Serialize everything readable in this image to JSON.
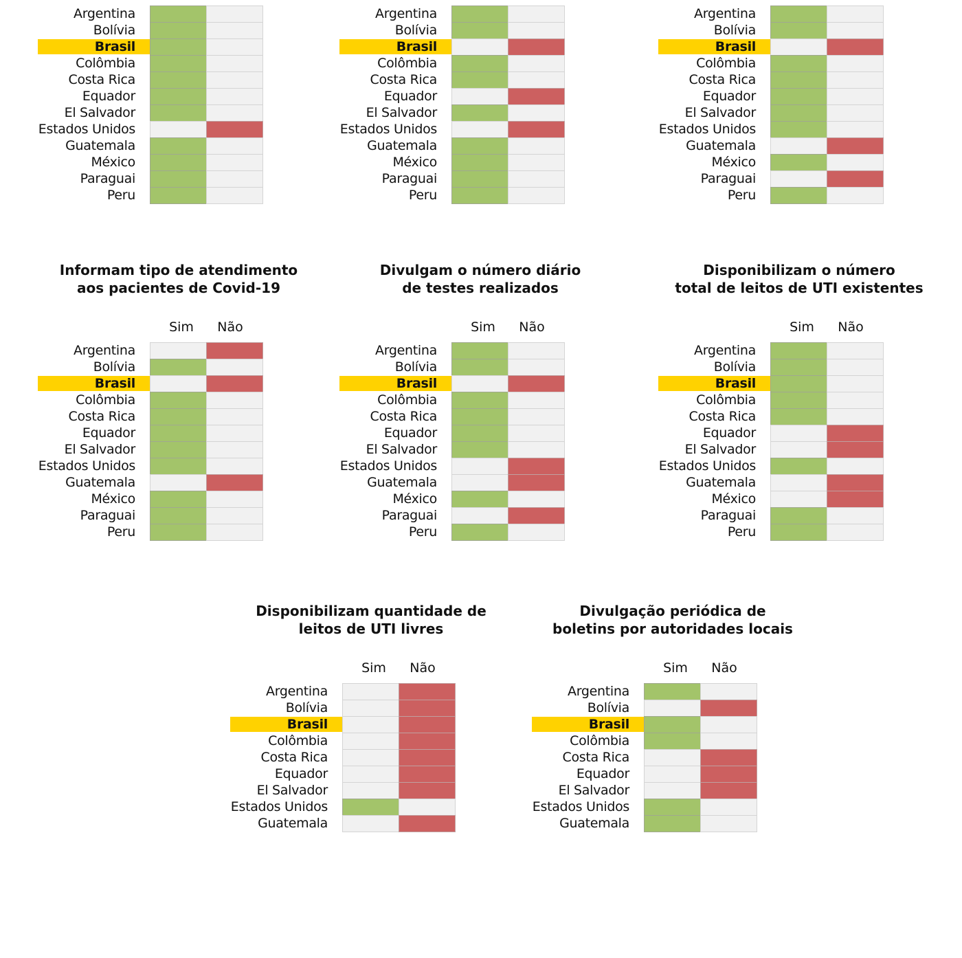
{
  "colors": {
    "sim": "#a3c46a",
    "nao": "#cc6060",
    "empty": "#f1f1f1",
    "highlight": "#ffd200"
  },
  "headers": {
    "sim": "Sim",
    "nao": "Não"
  },
  "highlight_country": "Brasil",
  "chart_data": [
    {
      "type": "table",
      "title": "",
      "countries": [
        "Argentina",
        "Bolívia",
        "Brasil",
        "Colômbia",
        "Costa Rica",
        "Equador",
        "El Salvador",
        "Estados Unidos",
        "Guatemala",
        "México",
        "Paraguai",
        "Peru"
      ],
      "values": [
        "Sim",
        "Sim",
        "Sim",
        "Sim",
        "Sim",
        "Sim",
        "Sim",
        "Não",
        "Sim",
        "Sim",
        "Sim",
        "Sim"
      ]
    },
    {
      "type": "table",
      "title": "",
      "countries": [
        "Argentina",
        "Bolívia",
        "Brasil",
        "Colômbia",
        "Costa Rica",
        "Equador",
        "El Salvador",
        "Estados Unidos",
        "Guatemala",
        "México",
        "Paraguai",
        "Peru"
      ],
      "values": [
        "Sim",
        "Sim",
        "Não",
        "Sim",
        "Sim",
        "Não",
        "Sim",
        "Não",
        "Sim",
        "Sim",
        "Sim",
        "Sim"
      ]
    },
    {
      "type": "table",
      "title": "",
      "countries": [
        "Argentina",
        "Bolívia",
        "Brasil",
        "Colômbia",
        "Costa Rica",
        "Equador",
        "El Salvador",
        "Estados Unidos",
        "Guatemala",
        "México",
        "Paraguai",
        "Peru"
      ],
      "values": [
        "Sim",
        "Sim",
        "Não",
        "Sim",
        "Sim",
        "Sim",
        "Sim",
        "Sim",
        "Não",
        "Sim",
        "Não",
        "Sim"
      ]
    },
    {
      "type": "table",
      "title": "Informam tipo de atendimento aos pacientes de Covid-19",
      "title_lines": [
        "Informam tipo de atendimento",
        "aos pacientes de Covid-19"
      ],
      "countries": [
        "Argentina",
        "Bolívia",
        "Brasil",
        "Colômbia",
        "Costa Rica",
        "Equador",
        "El Salvador",
        "Estados Unidos",
        "Guatemala",
        "México",
        "Paraguai",
        "Peru"
      ],
      "values": [
        "Não",
        "Sim",
        "Não",
        "Sim",
        "Sim",
        "Sim",
        "Sim",
        "Sim",
        "Não",
        "Sim",
        "Sim",
        "Sim"
      ]
    },
    {
      "type": "table",
      "title": "Divulgam o número diário de testes realizados",
      "title_lines": [
        "Divulgam o número diário",
        "de testes realizados"
      ],
      "countries": [
        "Argentina",
        "Bolívia",
        "Brasil",
        "Colômbia",
        "Costa Rica",
        "Equador",
        "El Salvador",
        "Estados Unidos",
        "Guatemala",
        "México",
        "Paraguai",
        "Peru"
      ],
      "values": [
        "Sim",
        "Sim",
        "Não",
        "Sim",
        "Sim",
        "Sim",
        "Sim",
        "Não",
        "Não",
        "Sim",
        "Não",
        "Sim"
      ]
    },
    {
      "type": "table",
      "title": "Disponibilizam o número total de leitos de UTI existentes",
      "title_lines": [
        "Disponibilizam o número",
        "total de leitos de UTI existentes"
      ],
      "countries": [
        "Argentina",
        "Bolívia",
        "Brasil",
        "Colômbia",
        "Costa Rica",
        "Equador",
        "El Salvador",
        "Estados Unidos",
        "Guatemala",
        "México",
        "Paraguai",
        "Peru"
      ],
      "values": [
        "Sim",
        "Sim",
        "Sim",
        "Sim",
        "Sim",
        "Não",
        "Não",
        "Sim",
        "Não",
        "Não",
        "Sim",
        "Sim"
      ]
    },
    {
      "type": "table",
      "title": "Disponibilizam quantidade de leitos de UTI livres",
      "title_lines": [
        "Disponibilizam quantidade de",
        "leitos de UTI livres"
      ],
      "countries": [
        "Argentina",
        "Bolívia",
        "Brasil",
        "Colômbia",
        "Costa Rica",
        "Equador",
        "El Salvador",
        "Estados Unidos",
        "Guatemala"
      ],
      "values": [
        "Não",
        "Não",
        "Não",
        "Não",
        "Não",
        "Não",
        "Não",
        "Sim",
        "Não"
      ]
    },
    {
      "type": "table",
      "title": "Divulgação periódica de boletins por autoridades locais",
      "title_lines": [
        "Divulgação periódica de",
        "boletins por autoridades locais"
      ],
      "countries": [
        "Argentina",
        "Bolívia",
        "Brasil",
        "Colômbia",
        "Costa Rica",
        "Equador",
        "El Salvador",
        "Estados Unidos",
        "Guatemala"
      ],
      "values": [
        "Sim",
        "Não",
        "Sim",
        "Sim",
        "Não",
        "Não",
        "Não",
        "Sim",
        "Sim"
      ]
    }
  ]
}
